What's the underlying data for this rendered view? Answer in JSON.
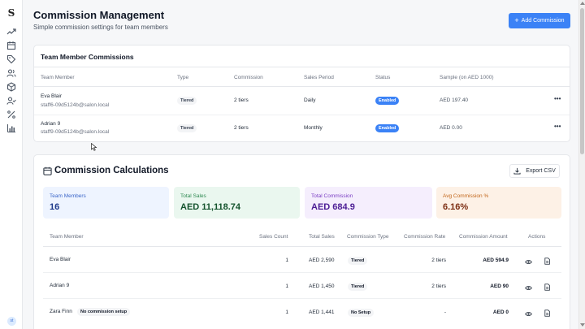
{
  "sidebar": {
    "logo": "S",
    "icons": [
      "trend-icon",
      "calendar-icon",
      "tag-icon",
      "users-icon",
      "box-icon",
      "user-check-icon",
      "percent-icon",
      "bar-chart-icon"
    ],
    "avatar": "st"
  },
  "header": {
    "title": "Commission Management",
    "subtitle": "Simple commission settings for team members",
    "add_button": "Add Commission"
  },
  "team_commissions": {
    "title": "Team Member Commissions",
    "columns": [
      "Team Member",
      "Type",
      "Commission",
      "Sales Period",
      "Status",
      "Sample (on AED 1000)"
    ],
    "rows": [
      {
        "name": "Eva Blair",
        "email": "staff6-09d5124b@salon.local",
        "type": "Tiered",
        "commission": "2 tiers",
        "period": "Daily",
        "status": "Enabled",
        "sample": "AED 197.40",
        "menu": "•••"
      },
      {
        "name": "Adrian 9",
        "email": "staff9-09d5124b@salon.local",
        "type": "Tiered",
        "commission": "2 tiers",
        "period": "Monthly",
        "status": "Enabled",
        "sample": "AED 0.00",
        "menu": "•••"
      }
    ]
  },
  "calculations": {
    "title": "Commission Calculations",
    "export_button": "Export CSV",
    "stats": [
      {
        "label": "Team Members",
        "value": "16",
        "bg": "#eef4ff",
        "color": "#3b66c9",
        "value_color": "#1e3a8a"
      },
      {
        "label": "Total Sales",
        "value": "AED 11,118.74",
        "bg": "#eaf7ef",
        "color": "#2f8a52",
        "value_color": "#14532d"
      },
      {
        "label": "Total Commission",
        "value": "AED 684.9",
        "bg": "#f5eefd",
        "color": "#7b3fc4",
        "value_color": "#4c1d95"
      },
      {
        "label": "Avg Commission %",
        "value": "6.16%",
        "bg": "#fdf1e6",
        "color": "#c2661a",
        "value_color": "#7c2d12"
      }
    ],
    "columns": [
      "Team Member",
      "Sales Count",
      "Total Sales",
      "Commission Type",
      "Commission Rate",
      "Commission Amount",
      "Actions"
    ],
    "rows": [
      {
        "name": "Eva Blair",
        "badge": "",
        "count": "1",
        "sales": "AED 2,590",
        "type": "Tiered",
        "rate": "2 tiers",
        "amount": "AED 594.9"
      },
      {
        "name": "Adrian 9",
        "badge": "",
        "count": "1",
        "sales": "AED 1,450",
        "type": "Tiered",
        "rate": "2 tiers",
        "amount": "AED 90"
      },
      {
        "name": "Zara Finn",
        "badge": "No commission setup",
        "count": "1",
        "sales": "AED 1,441",
        "type": "No Setup",
        "rate": "-",
        "amount": "AED 0"
      }
    ]
  }
}
